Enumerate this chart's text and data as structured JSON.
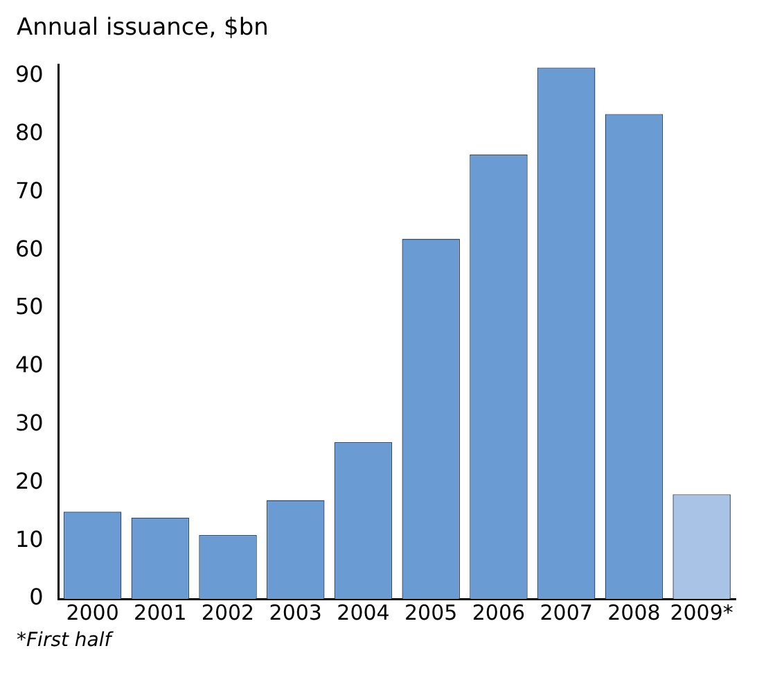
{
  "chart_data": {
    "type": "bar",
    "title": "Annual issuance, $bn",
    "categories": [
      "2000",
      "2001",
      "2002",
      "2003",
      "2004",
      "2005",
      "2006",
      "2007",
      "2008",
      "2009*"
    ],
    "values": [
      15,
      14,
      11,
      17,
      27,
      62,
      76.5,
      91.5,
      83.5,
      18
    ],
    "colors": [
      "#6b9bd3",
      "#6b9bd3",
      "#6b9bd3",
      "#6b9bd3",
      "#6b9bd3",
      "#6b9bd3",
      "#6b9bd3",
      "#6b9bd3",
      "#6b9bd3",
      "#a9c3e6"
    ],
    "ylim": [
      0,
      92
    ],
    "yticks": [
      0,
      10,
      20,
      30,
      40,
      50,
      60,
      70,
      80,
      90
    ],
    "grid": false,
    "legend": false,
    "annotations": [
      "*First half"
    ]
  }
}
